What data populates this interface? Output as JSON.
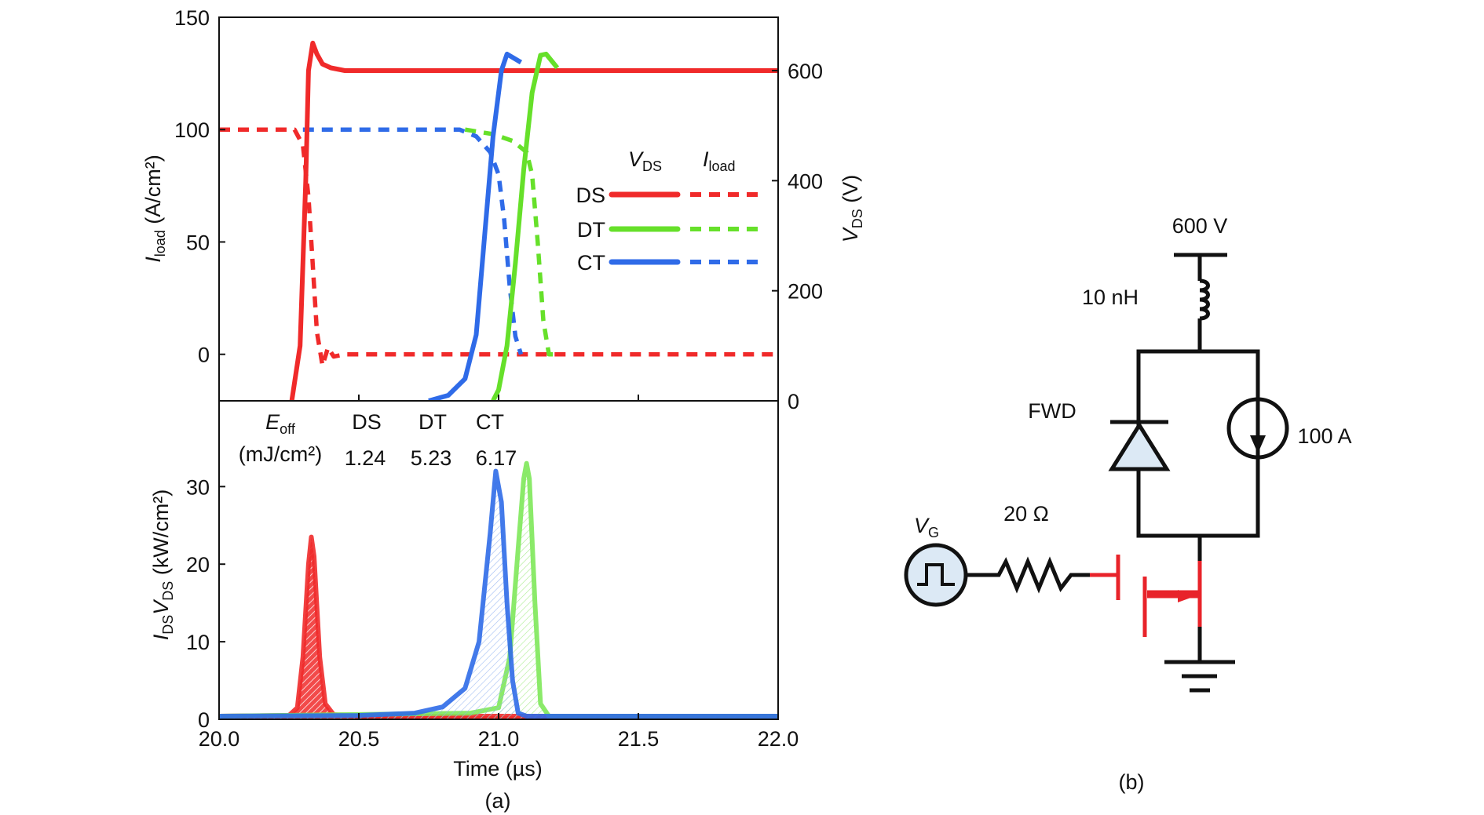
{
  "chart_data": [
    {
      "type": "line",
      "panel": "top",
      "xlabel": "",
      "xlim": [
        20.0,
        22.0
      ],
      "ylabel_left": {
        "main": "I",
        "sub": "load",
        "rest": " (A/cm²)"
      },
      "ylabel_right": {
        "main": "V",
        "sub": "DS",
        "rest": " (V)"
      },
      "ylim_left": [
        -20.7,
        150
      ],
      "ylim_right": [
        0,
        600
      ],
      "yticks_left": [
        "150",
        "100",
        "50",
        "0"
      ],
      "yticks_left_values": [
        150,
        100,
        50,
        0
      ],
      "yticks_right": [
        "600",
        "400",
        "200",
        "0"
      ],
      "yticks_right_values": [
        600,
        400,
        200,
        0
      ],
      "legend": {
        "placement": "right",
        "header_vds": {
          "main": "V",
          "sub": "DS"
        },
        "header_iload": {
          "main": "I",
          "sub": "load"
        },
        "entries": [
          "DS",
          "DT",
          "CT"
        ]
      },
      "series": [
        {
          "name": "DS",
          "quantity": "VDS",
          "axis": "right",
          "style": "solid",
          "color": "#f02a2a",
          "x": [
            20.26,
            20.29,
            20.31,
            20.32,
            20.335,
            20.35,
            20.37,
            20.4,
            20.45,
            22.0
          ],
          "y": [
            0,
            100,
            400,
            600,
            650,
            630,
            612,
            605,
            600,
            600
          ]
        },
        {
          "name": "CT",
          "quantity": "VDS",
          "axis": "right",
          "style": "solid",
          "color": "#2f6be8",
          "x": [
            20.75,
            20.82,
            20.88,
            20.92,
            20.95,
            20.98,
            21.01,
            21.03,
            21.08
          ],
          "y": [
            0,
            10,
            40,
            120,
            300,
            480,
            600,
            630,
            615
          ]
        },
        {
          "name": "DT",
          "quantity": "VDS",
          "axis": "right",
          "style": "solid",
          "color": "#66e02a",
          "x": [
            20.98,
            21.0,
            21.03,
            21.06,
            21.09,
            21.12,
            21.15,
            21.17,
            21.21
          ],
          "y": [
            0,
            20,
            100,
            250,
            420,
            560,
            628,
            630,
            605
          ]
        },
        {
          "name": "DS",
          "quantity": "Iload",
          "axis": "left",
          "style": "dashed",
          "color": "#f02a2a",
          "x": [
            20.0,
            20.27,
            20.3,
            20.32,
            20.335,
            20.35,
            20.37,
            20.39,
            20.41,
            20.45,
            22.0
          ],
          "y": [
            100,
            100,
            93,
            70,
            40,
            10,
            -5,
            3,
            -1,
            0,
            0
          ]
        },
        {
          "name": "CT",
          "quantity": "Iload",
          "axis": "left",
          "style": "dashed",
          "color": "#2f6be8",
          "x": [
            20.3,
            20.86,
            20.92,
            20.97,
            21.0,
            21.02,
            21.04,
            21.06,
            21.08
          ],
          "y": [
            100,
            100,
            97,
            90,
            80,
            60,
            30,
            8,
            0
          ]
        },
        {
          "name": "DT",
          "quantity": "Iload",
          "axis": "left",
          "style": "dashed",
          "color": "#66e02a",
          "x": [
            20.88,
            20.98,
            21.05,
            21.1,
            21.12,
            21.14,
            21.16,
            21.18,
            21.2
          ],
          "y": [
            100,
            98,
            95,
            90,
            80,
            50,
            15,
            0,
            0
          ]
        }
      ]
    },
    {
      "type": "area",
      "panel": "bottom",
      "xlabel": "Time (µs)",
      "xlim": [
        20.0,
        22.0
      ],
      "xticks": [
        "20.0",
        "20.5",
        "21.0",
        "21.5",
        "22.0"
      ],
      "xtick_values": [
        20.0,
        20.5,
        21.0,
        21.5,
        22.0
      ],
      "ylabel": {
        "m1": "I",
        "s1": "DS",
        "m2": "V",
        "s2": "DS",
        "rest": " (kW/cm²)"
      },
      "ylim": [
        0,
        36
      ],
      "yticks": [
        "30",
        "20",
        "10",
        "0"
      ],
      "ytick_values": [
        30,
        20,
        10,
        0
      ],
      "annotations": {
        "eoff_label": {
          "main": "E",
          "sub": "off"
        },
        "eoff_unit": "(mJ/cm²)",
        "devices": [
          "DS",
          "DT",
          "CT"
        ],
        "values": [
          "1.24",
          "5.23",
          "6.17"
        ]
      },
      "series": [
        {
          "name": "DS",
          "color": "#f02a2a",
          "x": [
            20.0,
            20.25,
            20.28,
            20.3,
            20.32,
            20.33,
            20.34,
            20.36,
            20.38,
            20.41,
            20.5,
            22.0
          ],
          "y": [
            0.4,
            0.5,
            1.5,
            8,
            20,
            23.5,
            21,
            8,
            2,
            0.6,
            0.4,
            0.4
          ]
        },
        {
          "name": "CT",
          "color": "#2f6be8",
          "x": [
            20.0,
            20.5,
            20.7,
            20.8,
            20.88,
            20.93,
            20.97,
            20.99,
            21.01,
            21.03,
            21.05,
            21.07,
            21.1,
            22.0
          ],
          "y": [
            0.4,
            0.5,
            0.8,
            1.6,
            4,
            10,
            24,
            32,
            28,
            15,
            5,
            0.8,
            0.4,
            0.4
          ]
        },
        {
          "name": "DT",
          "color": "#7ee85a",
          "x": [
            20.0,
            20.9,
            21.0,
            21.04,
            21.07,
            21.09,
            21.1,
            21.11,
            21.13,
            21.15,
            21.18,
            22.0
          ],
          "y": [
            0.4,
            0.8,
            1.5,
            8,
            22,
            31,
            33,
            31,
            15,
            2,
            0.4,
            0.4
          ]
        }
      ]
    }
  ],
  "captions": {
    "a": "(a)",
    "b": "(b)"
  },
  "circuit": {
    "supply": "600 V",
    "inductor": "10 nH",
    "diode": "FWD",
    "current_source": "100 A",
    "resistor": "20 Ω",
    "gate_source": {
      "main": "V",
      "sub": "G"
    },
    "colors": {
      "wire": "#111111",
      "mosfet": "#e8232a",
      "fill": "#dce9f5"
    }
  }
}
